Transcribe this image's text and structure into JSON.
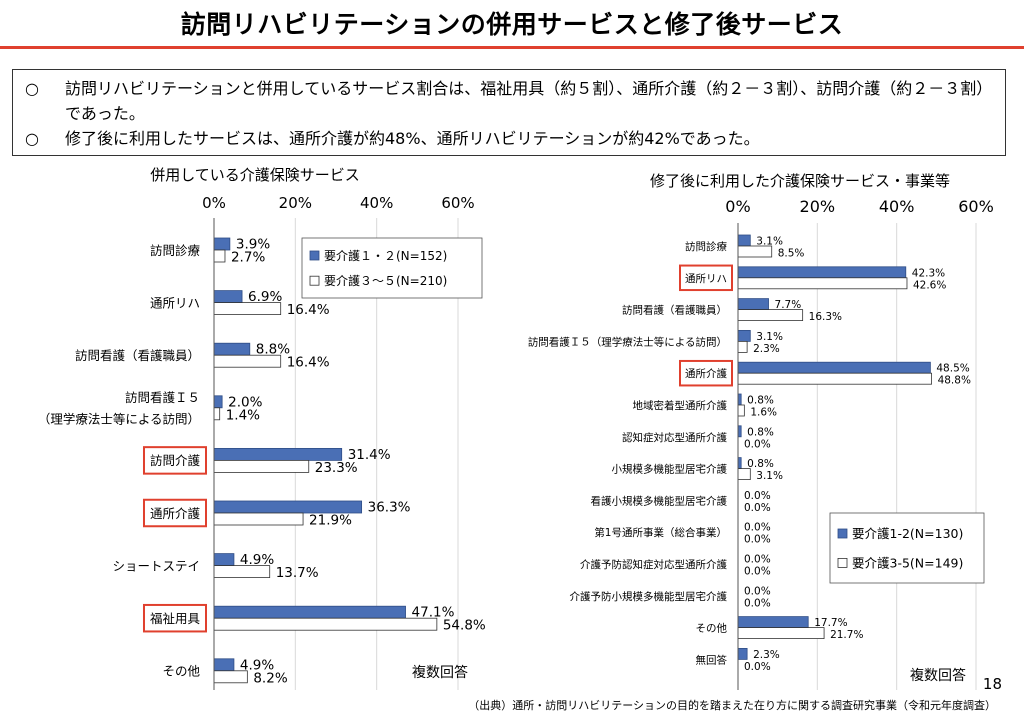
{
  "header": {
    "title": "訪問リハビリテーションの併用サービスと修了後サービス"
  },
  "summary": {
    "mark": "○",
    "lines": [
      "訪問リハビリテーションと併用しているサービス割合は、福祉用具（約５割）、通所介護（約２－３割）、訪問介護（約２－３割）であった。",
      "修了後に利用したサービスは、通所介護が約48%、通所リハビリテーションが約42%であった。"
    ]
  },
  "chart_data": [
    {
      "type": "bar",
      "orientation": "horizontal",
      "title": "併用している介護保険サービス",
      "xlim": [
        0,
        60
      ],
      "xticks": [
        "0%",
        "20%",
        "40%",
        "60%"
      ],
      "grid": true,
      "legend_position": "top-right",
      "note": "複数回答",
      "categories": [
        "訪問診療",
        "通所リハ",
        "訪問看護（看護職員）",
        "訪問看護Ｉ５\n（理学療法士等による訪問）",
        "訪問介護",
        "通所介護",
        "ショートステイ",
        "福祉用具",
        "その他"
      ],
      "highlighted": [
        "訪問介護",
        "通所介護",
        "福祉用具"
      ],
      "series": [
        {
          "name": "要介護１・２(N=152)",
          "color": "#4a6fb5",
          "values": [
            3.9,
            6.9,
            8.8,
            2.0,
            31.4,
            36.3,
            4.9,
            47.1,
            4.9
          ]
        },
        {
          "name": "要介護３～５(N=210)",
          "color": "#ffffff",
          "values": [
            2.7,
            16.4,
            16.4,
            1.4,
            23.3,
            21.9,
            13.7,
            54.8,
            8.2
          ]
        }
      ]
    },
    {
      "type": "bar",
      "orientation": "horizontal",
      "title": "修了後に利用した介護保険サービス・事業等",
      "xlim": [
        0,
        60
      ],
      "xticks": [
        "0%",
        "20%",
        "40%",
        "60%"
      ],
      "grid": true,
      "legend_position": "bottom-right",
      "note": "複数回答",
      "categories": [
        "訪問診療",
        "通所リハ",
        "訪問看護（看護職員）",
        "訪問看護Ｉ５（理学療法士等による訪問）",
        "通所介護",
        "地域密着型通所介護",
        "認知症対応型通所介護",
        "小規模多機能型居宅介護",
        "看護小規模多機能型居宅介護",
        "第1号通所事業（総合事業）",
        "介護予防認知症対応型通所介護",
        "介護予防小規模多機能型居宅介護",
        "その他",
        "無回答"
      ],
      "highlighted": [
        "通所リハ",
        "通所介護"
      ],
      "series": [
        {
          "name": "要介護1-2(N=130)",
          "color": "#4a6fb5",
          "values": [
            3.1,
            42.3,
            7.7,
            3.1,
            48.5,
            0.8,
            0.8,
            0.8,
            0.0,
            0.0,
            0.0,
            0.0,
            17.7,
            2.3
          ]
        },
        {
          "name": "要介護3-5(N=149)",
          "color": "#ffffff",
          "values": [
            8.5,
            42.6,
            16.3,
            2.3,
            48.8,
            1.6,
            0.0,
            3.1,
            0.0,
            0.0,
            0.0,
            0.0,
            21.7,
            0.0
          ]
        }
      ]
    }
  ],
  "page_number": "18",
  "footnote": "（出典）通所・訪問リハビリテーションの目的を踏まえた在り方に関する調査研究事業（令和元年度調査）",
  "colors": {
    "accent_rule": "#e0402e",
    "highlight_box": "#e0402e",
    "series_fill": "#4a6fb5",
    "gridline": "#d9d9d9"
  }
}
